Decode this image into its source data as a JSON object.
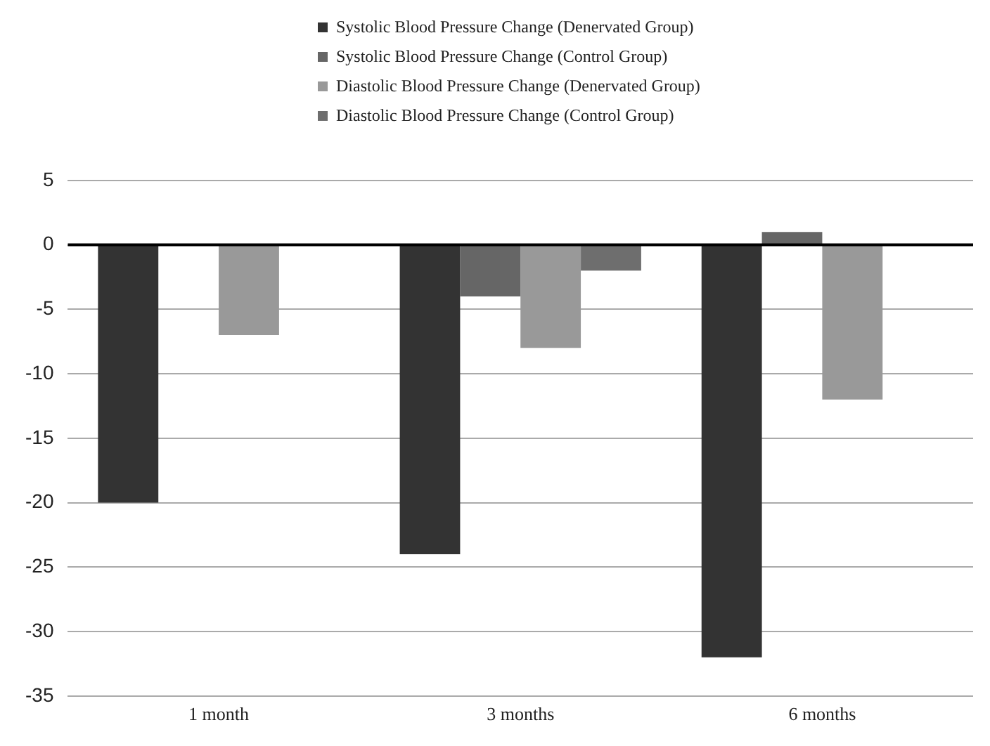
{
  "chart_data": {
    "type": "bar",
    "categories": [
      "1 month",
      "3 months",
      "6 months"
    ],
    "series": [
      {
        "name": "Systolic Blood Pressure Change (Denervated Group)",
        "color": "#333333",
        "values": [
          -20,
          -24,
          -32
        ]
      },
      {
        "name": "Systolic Blood Pressure Change (Control Group)",
        "color": "#666666",
        "values": [
          0,
          -4,
          1
        ]
      },
      {
        "name": "Diastolic Blood Pressure Change (Denervated Group)",
        "color": "#999999",
        "values": [
          -7,
          -8,
          -12
        ]
      },
      {
        "name": "Diastolic Blood Pressure Change (Control Group)",
        "color": "#6e6e6e",
        "values": [
          0,
          -2,
          0
        ]
      }
    ],
    "ylim": [
      -35,
      5
    ],
    "yticks": [
      5,
      0,
      -5,
      -10,
      -15,
      -20,
      -25,
      -30,
      -35
    ],
    "grid": "y",
    "legend": "top"
  }
}
